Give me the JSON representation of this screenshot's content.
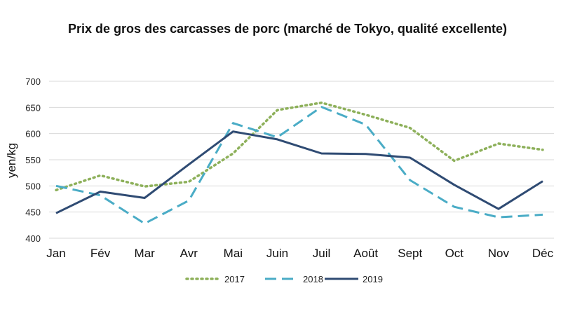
{
  "chart_data": {
    "type": "line",
    "title": "Prix de gros des carcasses de porc (marché de Tokyo, qualité excellente)",
    "xlabel": "",
    "ylabel": "yen/kg",
    "categories": [
      "Jan",
      "Fév",
      "Mar",
      "Avr",
      "Mai",
      "Juin",
      "Juil",
      "Août",
      "Sept",
      "Oct",
      "Nov",
      "Déc"
    ],
    "ylim": [
      400,
      700
    ],
    "yticks": [
      400,
      450,
      500,
      550,
      600,
      650,
      700
    ],
    "grid": true,
    "legend_position": "bottom",
    "series": [
      {
        "name": "2017",
        "style": "dotted",
        "color": "#8db05a",
        "values": [
          492,
          520,
          499,
          508,
          562,
          645,
          659,
          636,
          611,
          548,
          581,
          569
        ]
      },
      {
        "name": "2018",
        "style": "dashed",
        "color": "#4aacc6",
        "values": [
          500,
          482,
          428,
          472,
          620,
          593,
          651,
          617,
          511,
          460,
          440,
          445
        ]
      },
      {
        "name": "2019",
        "style": "solid",
        "color": "#2f4b73",
        "values": [
          448,
          489,
          477,
          541,
          604,
          589,
          562,
          561,
          554,
          502,
          456,
          509
        ]
      }
    ]
  }
}
